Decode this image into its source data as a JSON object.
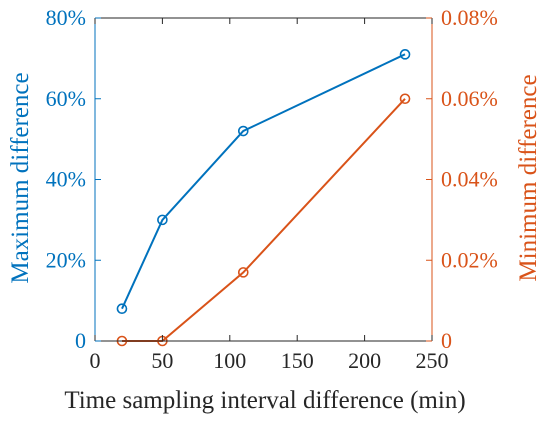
{
  "chart_data": {
    "type": "line",
    "title": "",
    "xlabel": "Time sampling interval difference (min)",
    "ylabel_left": "Maximum difference",
    "ylabel_right": "Minimum difference",
    "xlim": [
      0,
      250
    ],
    "ylim_left": [
      0,
      80
    ],
    "ylim_right": [
      0,
      0.08
    ],
    "x_ticks": [
      0,
      50,
      100,
      150,
      200,
      250
    ],
    "x_tick_labels": [
      "0",
      "50",
      "100",
      "150",
      "200",
      "250"
    ],
    "y_left_ticks": [
      0,
      20,
      40,
      60,
      80
    ],
    "y_left_tick_labels": [
      "0",
      "20%",
      "40%",
      "60%",
      "80%"
    ],
    "y_right_ticks": [
      0,
      0.02,
      0.04,
      0.06,
      0.08
    ],
    "y_right_tick_labels": [
      "0",
      "0.02%",
      "0.04%",
      "0.06%",
      "0.08%"
    ],
    "grid": false,
    "legend": "none",
    "series": [
      {
        "axis": "left",
        "color": "#0072BD",
        "marker": "circle",
        "x": [
          20,
          50,
          110,
          230
        ],
        "y": [
          8,
          30,
          52,
          71
        ]
      },
      {
        "axis": "right",
        "color": "#D95319",
        "marker": "circle",
        "x": [
          20,
          50,
          110,
          230
        ],
        "y": [
          0,
          0,
          0.017,
          0.06
        ]
      }
    ]
  }
}
